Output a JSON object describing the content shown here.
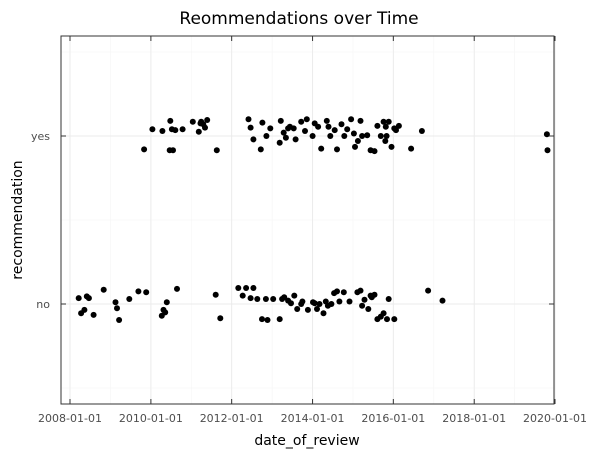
{
  "chart_data": {
    "type": "scatter",
    "title": "Reommendations over Time",
    "xlabel": "date_of_review",
    "ylabel": "recommendation",
    "x_ticks": [
      "2008-01-01",
      "2010-01-01",
      "2012-01-01",
      "2014-01-01",
      "2016-01-01",
      "2018-01-01",
      "2020-01-01"
    ],
    "y_categories": [
      "no",
      "yes"
    ],
    "xlim": [
      "2007-11-01",
      "2020-01-15"
    ],
    "grid": true,
    "legend": "none",
    "point_color": "#000000",
    "jitter": "points jittered vertically around each category",
    "series": [
      {
        "category": "yes",
        "x": [
          "2009-11-01",
          "2010-01-15",
          "2010-04-15",
          "2010-06-20",
          "2010-07-10",
          "2010-06-25",
          "2010-08-10",
          "2010-07-20",
          "2010-10-15",
          "2011-01-15",
          "2011-03-10",
          "2011-04-01",
          "2011-03-25",
          "2011-04-20",
          "2011-05-05",
          "2011-05-25",
          "2011-08-20",
          "2012-06-01",
          "2012-06-20",
          "2012-07-15",
          "2012-09-20",
          "2012-10-05",
          "2012-11-10",
          "2012-12-15",
          "2013-03-10",
          "2013-03-20",
          "2013-04-15",
          "2013-05-05",
          "2013-05-25",
          "2013-06-10",
          "2013-07-15",
          "2013-08-01",
          "2013-09-20",
          "2013-10-25",
          "2013-11-10",
          "2014-01-01",
          "2014-01-20",
          "2014-02-20",
          "2014-03-20",
          "2014-05-10",
          "2014-05-25",
          "2014-06-10",
          "2014-07-20",
          "2014-08-10",
          "2014-09-20",
          "2014-10-15",
          "2014-11-10",
          "2014-12-15",
          "2015-01-10",
          "2015-01-20",
          "2015-02-15",
          "2015-03-10",
          "2015-03-25",
          "2015-05-10",
          "2015-06-10",
          "2015-07-15",
          "2015-08-10",
          "2015-09-10",
          "2015-10-05",
          "2015-10-20",
          "2015-10-25",
          "2015-11-01",
          "2015-11-20",
          "2015-12-15",
          "2016-01-10",
          "2016-01-25",
          "2016-02-20",
          "2016-06-10",
          "2016-09-15",
          "2019-10-20",
          "2019-10-25"
        ],
        "y": [
          "yes",
          "yes",
          "yes",
          "yes",
          "yes",
          "yes",
          "yes",
          "yes",
          "yes",
          "yes",
          "yes",
          "yes",
          "yes",
          "yes",
          "yes",
          "yes",
          "yes",
          "yes",
          "yes",
          "yes",
          "yes",
          "yes",
          "yes",
          "yes",
          "yes",
          "yes",
          "yes",
          "yes",
          "yes",
          "yes",
          "yes",
          "yes",
          "yes",
          "yes",
          "yes",
          "yes",
          "yes",
          "yes",
          "yes",
          "yes",
          "yes",
          "yes",
          "yes",
          "yes",
          "yes",
          "yes",
          "yes",
          "yes",
          "yes",
          "yes",
          "yes",
          "yes",
          "yes",
          "yes",
          "yes",
          "yes",
          "yes",
          "yes",
          "yes",
          "yes",
          "yes",
          "yes",
          "yes",
          "yes",
          "yes",
          "yes",
          "yes",
          "yes",
          "yes",
          "yes",
          "yes"
        ],
        "jitter": [
          -0.16,
          0.08,
          0.06,
          -0.17,
          0.08,
          0.18,
          0.07,
          -0.17,
          0.08,
          0.17,
          0.05,
          0.17,
          0.15,
          0.14,
          0.1,
          0.19,
          -0.17,
          0.2,
          0.1,
          -0.04,
          -0.16,
          0.16,
          0.0,
          0.09,
          -0.08,
          0.18,
          0.04,
          -0.02,
          0.09,
          0.11,
          0.09,
          -0.04,
          0.17,
          0.06,
          0.2,
          0.0,
          0.15,
          0.11,
          -0.15,
          0.18,
          0.11,
          0.0,
          0.07,
          -0.16,
          0.14,
          0.0,
          0.08,
          0.2,
          0.03,
          -0.13,
          -0.06,
          0.18,
          0.0,
          0.01,
          -0.17,
          -0.18,
          0.12,
          0.0,
          0.17,
          -0.06,
          0.11,
          0.0,
          0.17,
          -0.13,
          0.09,
          0.07,
          0.12,
          -0.15,
          0.06,
          0.02,
          -0.17
        ],
        "y_marks": "yes"
      },
      {
        "category": "no",
        "x": [
          "2008-03-20",
          "2008-04-10",
          "2008-05-10",
          "2008-06-01",
          "2008-06-20",
          "2008-08-01",
          "2008-11-01",
          "2009-02-15",
          "2009-03-01",
          "2009-03-20",
          "2009-06-20",
          "2009-09-10",
          "2009-11-20",
          "2010-04-10",
          "2010-04-25",
          "2010-05-10",
          "2010-05-25",
          "2010-08-25",
          "2011-08-10",
          "2011-09-20",
          "2012-03-01",
          "2012-04-10",
          "2012-05-10",
          "2012-06-20",
          "2012-07-15",
          "2012-08-20",
          "2012-10-01",
          "2012-11-05",
          "2012-11-20",
          "2013-01-10",
          "2013-03-10",
          "2013-04-01",
          "2013-04-20",
          "2013-05-25",
          "2013-06-20",
          "2013-07-20",
          "2013-08-15",
          "2013-09-20",
          "2013-10-01",
          "2013-11-20",
          "2014-01-05",
          "2014-01-20",
          "2014-02-10",
          "2014-03-05",
          "2014-04-10",
          "2014-05-01",
          "2014-05-20",
          "2014-06-20",
          "2014-07-15",
          "2014-08-10",
          "2014-09-01",
          "2014-10-10",
          "2014-12-01",
          "2015-02-10",
          "2015-03-10",
          "2015-03-25",
          "2015-04-15",
          "2015-05-20",
          "2015-06-20",
          "2015-06-10",
          "2015-07-15",
          "2015-08-10",
          "2015-09-10",
          "2015-10-05",
          "2015-11-05",
          "2015-11-20",
          "2016-01-10",
          "2016-11-10",
          "2017-03-20"
        ],
        "y": [
          "no",
          "no",
          "no",
          "no",
          "no",
          "no",
          "no",
          "no",
          "no",
          "no",
          "no",
          "no",
          "no",
          "no",
          "no",
          "no",
          "no",
          "no",
          "no",
          "no",
          "no",
          "no",
          "no",
          "no",
          "no",
          "no",
          "no",
          "no",
          "no",
          "no",
          "no",
          "no",
          "no",
          "no",
          "no",
          "no",
          "no",
          "no",
          "no",
          "no",
          "no",
          "no",
          "no",
          "no",
          "no",
          "no",
          "no",
          "no",
          "no",
          "no",
          "no",
          "no",
          "no",
          "no",
          "no",
          "no",
          "no",
          "no",
          "no",
          "no",
          "no",
          "no",
          "no",
          "no",
          "no",
          "no",
          "no",
          "no",
          "no"
        ],
        "jitter": [
          0.07,
          -0.11,
          -0.07,
          0.09,
          0.07,
          -0.13,
          0.17,
          0.02,
          -0.05,
          -0.19,
          0.06,
          0.15,
          0.14,
          -0.14,
          -0.07,
          -0.1,
          0.02,
          0.18,
          0.11,
          -0.17,
          0.19,
          0.1,
          0.19,
          0.07,
          0.19,
          0.06,
          -0.18,
          0.06,
          -0.19,
          0.06,
          -0.18,
          0.06,
          0.08,
          0.04,
          0.01,
          0.1,
          -0.06,
          0.0,
          0.03,
          -0.07,
          0.02,
          0.01,
          -0.06,
          0.0,
          -0.11,
          0.03,
          -0.02,
          0.0,
          0.13,
          0.15,
          0.03,
          0.14,
          0.03,
          0.14,
          0.16,
          -0.02,
          0.05,
          -0.06,
          0.08,
          0.1,
          0.11,
          -0.18,
          -0.15,
          -0.11,
          -0.18,
          0.06,
          -0.18,
          0.16,
          0.04
        ],
        "y_marks": "no"
      }
    ]
  }
}
